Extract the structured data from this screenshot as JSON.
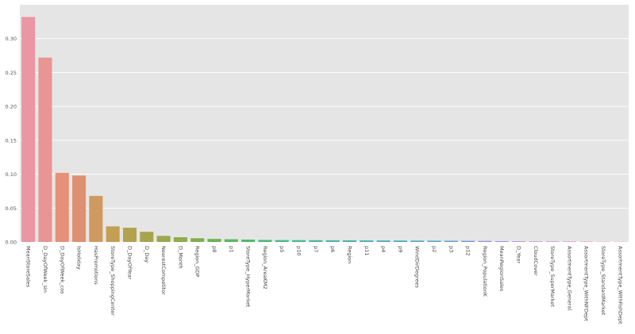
{
  "chart_data": {
    "type": "bar",
    "title": "",
    "xlabel": "",
    "ylabel": "",
    "ylim": [
      0,
      0.35
    ],
    "yticks": [
      0.0,
      0.05,
      0.1,
      0.15,
      0.2,
      0.25,
      0.3
    ],
    "ytick_labels": [
      "0.00",
      "0.05",
      "0.10",
      "0.15",
      "0.20",
      "0.25",
      "0.30"
    ],
    "grid": true,
    "background": "#e5e5e5",
    "grid_color": "#ffffff",
    "categories": [
      "MeanStoreSales",
      "D_DayOfWeek_sin",
      "D_DayOfWeek_cos",
      "IsHoliday",
      "HasPromotions",
      "StoreType_ShoppingCenter",
      "D_DayOfYear",
      "D_Day",
      "NearestCompetitor",
      "D_Month",
      "Region_GDP",
      "p8",
      "p1",
      "StoreType_HyperMarket",
      "Region_AreaKM2",
      "p5",
      "p10",
      "p7",
      "p6",
      "Region",
      "p11",
      "p4",
      "p9",
      "WindDirDegrees",
      "p2",
      "p3",
      "p12",
      "Region_PopulationK",
      "MeanRegionSales",
      "D_Year",
      "CloudCover",
      "StoreType_SuperMarket",
      "AssortmentType_General",
      "AssortmentType_WithNFDept",
      "StoreType_StandardMarket",
      "AssortmentType_WithFishDept"
    ],
    "values": [
      0.332,
      0.272,
      0.102,
      0.098,
      0.068,
      0.023,
      0.021,
      0.015,
      0.009,
      0.007,
      0.0055,
      0.0045,
      0.004,
      0.0035,
      0.003,
      0.0028,
      0.0027,
      0.0026,
      0.0025,
      0.0024,
      0.0023,
      0.0022,
      0.0021,
      0.002,
      0.0019,
      0.0018,
      0.0017,
      0.0015,
      0.0012,
      0.001,
      0.0008,
      0.0007,
      0.0006,
      0.0005,
      0.0004,
      0.0003
    ],
    "colors": [
      "#ea96a3",
      "#e99593",
      "#e49178",
      "#dd9170",
      "#cf9a60",
      "#c29f52",
      "#b2a14f",
      "#a6a54c",
      "#9ca84e",
      "#8fab4d",
      "#7fae4f",
      "#6cb354",
      "#5cb65f",
      "#50b76d",
      "#4db87a",
      "#4db888",
      "#4db893",
      "#4db59c",
      "#4cb3a3",
      "#4cb1aa",
      "#4eafb0",
      "#50adb7",
      "#52abbd",
      "#55a9c4",
      "#59a6cc",
      "#629fd4",
      "#7599da",
      "#8c95dd",
      "#a190df",
      "#b08adc",
      "#c185d8",
      "#d17ed2",
      "#dc80c7",
      "#e384bc",
      "#e78aaf",
      "#ea90a6"
    ]
  }
}
